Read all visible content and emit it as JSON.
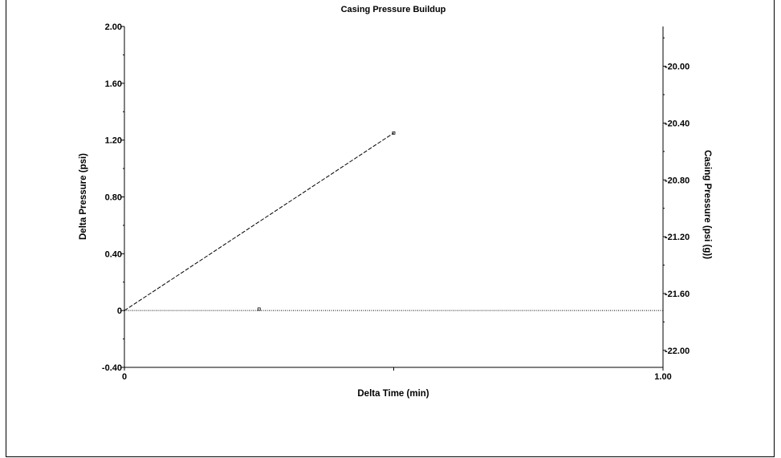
{
  "chart_data": {
    "type": "scatter",
    "title": "Casing Pressure Buildup",
    "xlabel": "Delta Time (min)",
    "ylabel": "Delta Pressure (psi)",
    "y2label": "Casing Pressure (psi (g))",
    "xlim": [
      0,
      1.0
    ],
    "ylim": [
      -0.4,
      2.0
    ],
    "y2lim": [
      -22.12,
      -19.72
    ],
    "x_ticks": [
      {
        "value": 0,
        "label": "0"
      },
      {
        "value": 1.0,
        "label": "1.00"
      }
    ],
    "y_ticks": [
      {
        "value": -0.4,
        "label": "-0.40"
      },
      {
        "value": 0,
        "label": "0"
      },
      {
        "value": 0.4,
        "label": "0.40"
      },
      {
        "value": 0.8,
        "label": "0.80"
      },
      {
        "value": 1.2,
        "label": "1.20"
      },
      {
        "value": 1.6,
        "label": "1.60"
      },
      {
        "value": 2.0,
        "label": "2.00"
      }
    ],
    "y2_ticks": [
      {
        "value": -22.0,
        "label": "-22.00"
      },
      {
        "value": -21.6,
        "label": "-21.60"
      },
      {
        "value": -21.2,
        "label": "-21.20"
      },
      {
        "value": -20.8,
        "label": "-20.80"
      },
      {
        "value": -20.4,
        "label": "-20.40"
      },
      {
        "value": -20.0,
        "label": "-20.00"
      }
    ],
    "series": [
      {
        "points": [
          {
            "x": 0.25,
            "y": 0.01
          }
        ],
        "style": "marker"
      },
      {
        "points": [
          {
            "x": 0.5,
            "y": 1.25
          }
        ],
        "style": "marker"
      }
    ],
    "lines": [
      {
        "points": [
          {
            "x": 0,
            "y": 0
          },
          {
            "x": 0.5,
            "y": 1.25
          }
        ],
        "style": "dashed"
      },
      {
        "points": [
          {
            "x": 0,
            "y": 0
          },
          {
            "x": 1.0,
            "y": 0
          }
        ],
        "style": "dotted"
      }
    ],
    "grid": false,
    "colors": {
      "axis": "#000000",
      "line": "#000000"
    }
  }
}
